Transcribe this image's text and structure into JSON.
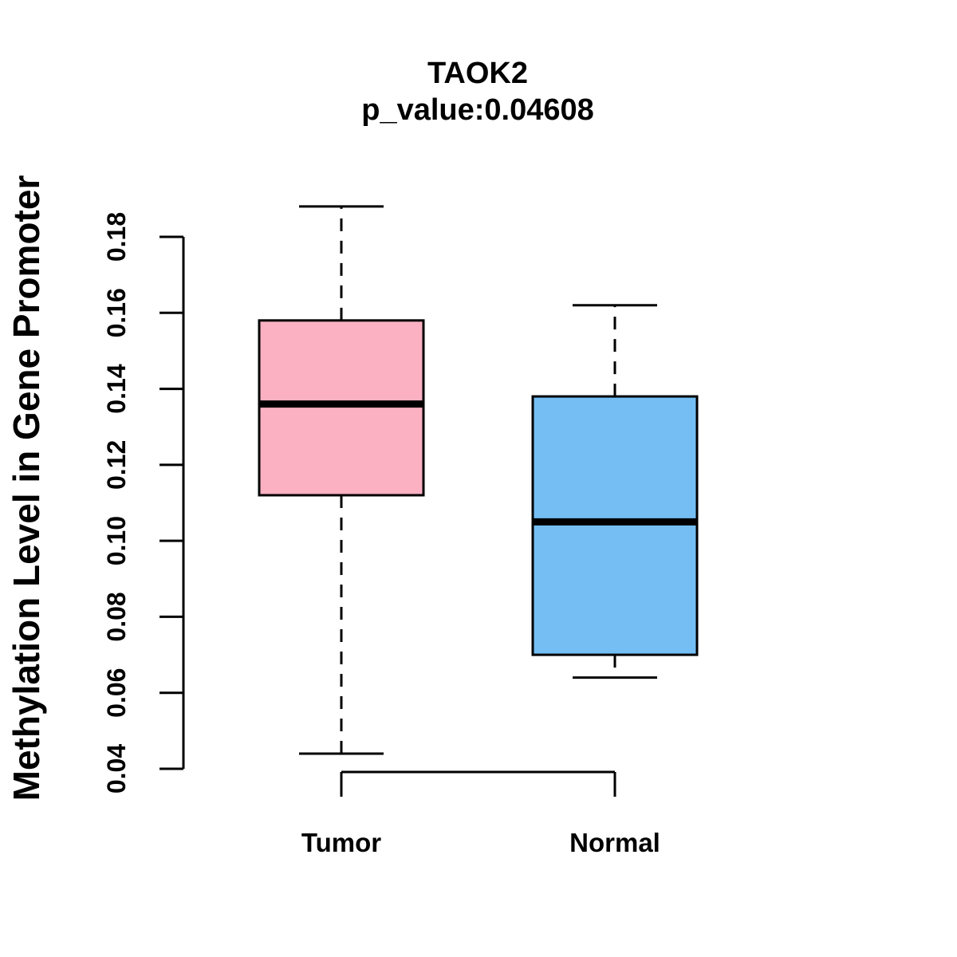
{
  "figure": {
    "background": "#ffffff",
    "text_color": "#000000"
  },
  "chart_data": {
    "type": "boxplot",
    "title": "TAOK2",
    "subtitle": "p_value:0.04608",
    "p_value": 0.04608,
    "ylabel": "Methylation Level in Gene Promoter",
    "xlabel": "",
    "categories": [
      "Tumor",
      "Normal"
    ],
    "groups": [
      {
        "name": "Tumor",
        "color": "#FCB1C3",
        "whisker_low": 0.044,
        "q1": 0.112,
        "median": 0.136,
        "q3": 0.158,
        "whisker_high": 0.188
      },
      {
        "name": "Normal",
        "color": "#74BEF4",
        "whisker_low": 0.064,
        "q1": 0.07,
        "median": 0.105,
        "q3": 0.138,
        "whisker_high": 0.162
      }
    ],
    "y_axis": {
      "tick_labels": [
        "0.04",
        "0.06",
        "0.08",
        "0.10",
        "0.12",
        "0.14",
        "0.16",
        "0.18"
      ],
      "tick_values": [
        0.04,
        0.06,
        0.08,
        0.1,
        0.12,
        0.14,
        0.16,
        0.18
      ],
      "tick_range": [
        0.04,
        0.18
      ]
    },
    "layout_hints": {
      "grid": false,
      "legend": false,
      "orientation": "vertical",
      "whisker_style": "dashed",
      "box_border_color": "#000000",
      "median_color": "#000000"
    }
  }
}
